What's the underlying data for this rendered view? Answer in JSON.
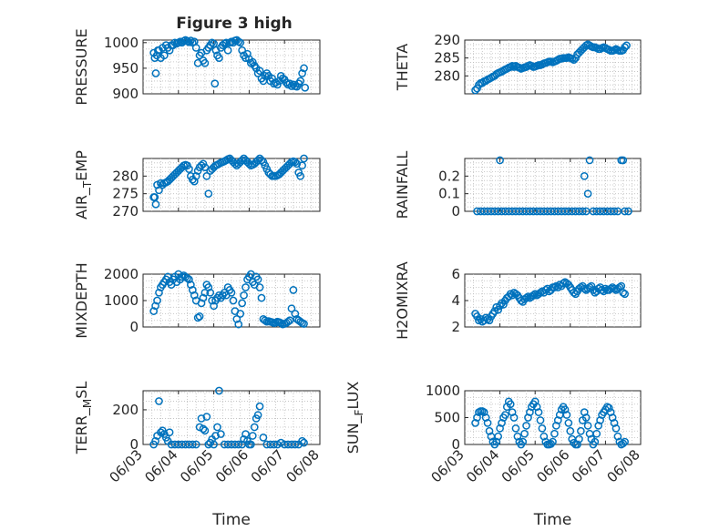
{
  "figure": {
    "title": "Figure 3 high"
  },
  "chart_data": [
    {
      "type": "scatter",
      "panel": "pressure",
      "ylabel": "PRESSURE",
      "xlabel": "",
      "xlim": [
        0,
        5
      ],
      "ylim": [
        900,
        1005
      ],
      "yticks": [
        900,
        950,
        1000
      ],
      "marker_color": "#0072BD",
      "x": [
        0.3,
        0.33,
        0.36,
        0.39,
        0.42,
        0.45,
        0.5,
        0.55,
        0.6,
        0.65,
        0.7,
        0.75,
        0.8,
        0.85,
        0.9,
        0.95,
        1.0,
        1.05,
        1.1,
        1.15,
        1.2,
        1.25,
        1.3,
        1.35,
        1.4,
        1.45,
        1.5,
        1.55,
        1.6,
        1.65,
        1.7,
        1.75,
        1.8,
        1.85,
        1.9,
        1.95,
        2.0,
        2.03,
        2.06,
        2.1,
        2.15,
        2.2,
        2.25,
        2.3,
        2.35,
        2.4,
        2.45,
        2.5,
        2.55,
        2.6,
        2.65,
        2.7,
        2.75,
        2.8,
        2.85,
        2.9,
        2.95,
        3.0,
        3.05,
        3.1,
        3.15,
        3.2,
        3.25,
        3.3,
        3.35,
        3.4,
        3.45,
        3.5,
        3.55,
        3.6,
        3.65,
        3.7,
        3.75,
        3.8,
        3.85,
        3.9,
        3.95,
        4.0,
        4.05,
        4.1,
        4.15,
        4.2,
        4.25,
        4.3,
        4.35,
        4.4,
        4.45,
        4.5,
        4.55,
        4.58
      ],
      "y": [
        980,
        970,
        940,
        975,
        985,
        985,
        970,
        990,
        975,
        995,
        990,
        985,
        995,
        995,
        1000,
        998,
        1000,
        1002,
        1000,
        1003,
        1005,
        1003,
        1001,
        1004,
        1000,
        1002,
        990,
        960,
        975,
        980,
        965,
        960,
        985,
        990,
        995,
        1000,
        998,
        920,
        985,
        975,
        970,
        990,
        995,
        998,
        1000,
        985,
        1000,
        1002,
        1000,
        1004,
        1005,
        1002,
        1000,
        985,
        975,
        970,
        978,
        968,
        960,
        962,
        955,
        950,
        940,
        945,
        930,
        925,
        935,
        940,
        935,
        925,
        930,
        920,
        922,
        918,
        925,
        935,
        930,
        928,
        922,
        918,
        920,
        915,
        918,
        915,
        914,
        920,
        925,
        940,
        950,
        912
      ]
    },
    {
      "type": "scatter",
      "panel": "theta",
      "ylabel": "THETA",
      "xlabel": "",
      "xlim": [
        0,
        5
      ],
      "ylim": [
        275,
        290
      ],
      "yticks": [
        280,
        285,
        290
      ],
      "marker_color": "#0072BD",
      "x": [
        0.3,
        0.35,
        0.4,
        0.45,
        0.5,
        0.55,
        0.6,
        0.65,
        0.7,
        0.75,
        0.8,
        0.85,
        0.9,
        0.95,
        1.0,
        1.05,
        1.1,
        1.15,
        1.2,
        1.25,
        1.3,
        1.35,
        1.4,
        1.45,
        1.5,
        1.55,
        1.6,
        1.65,
        1.7,
        1.75,
        1.8,
        1.85,
        1.9,
        1.95,
        2.0,
        2.05,
        2.1,
        2.15,
        2.2,
        2.25,
        2.3,
        2.35,
        2.4,
        2.45,
        2.5,
        2.55,
        2.6,
        2.65,
        2.7,
        2.75,
        2.8,
        2.85,
        2.9,
        2.95,
        3.0,
        3.05,
        3.1,
        3.15,
        3.2,
        3.25,
        3.3,
        3.35,
        3.4,
        3.45,
        3.5,
        3.55,
        3.6,
        3.65,
        3.7,
        3.75,
        3.8,
        3.85,
        3.9,
        3.95,
        4.0,
        4.05,
        4.1,
        4.15,
        4.2,
        4.25,
        4.3,
        4.35,
        4.4,
        4.45,
        4.5,
        4.55,
        4.6
      ],
      "y": [
        276,
        276.5,
        277.5,
        278,
        278,
        278.5,
        278.6,
        279,
        279.2,
        279.5,
        279.8,
        280,
        280.5,
        280.8,
        281,
        281.2,
        281.5,
        281.8,
        282,
        282.3,
        282.5,
        282.8,
        282.5,
        282.8,
        282.5,
        282.3,
        282,
        282.2,
        282.4,
        282.5,
        282.8,
        283,
        282.8,
        282.5,
        282.6,
        282.8,
        283,
        283,
        283.2,
        283.5,
        283.6,
        283.8,
        284,
        284,
        283.8,
        284,
        284.2,
        284.5,
        284.8,
        284.8,
        285,
        285,
        285,
        285.2,
        285,
        284.8,
        284.5,
        285,
        286,
        286.5,
        287,
        287.5,
        288,
        288.5,
        288.8,
        288.5,
        288.2,
        288,
        288,
        287.8,
        287.5,
        287.5,
        287.8,
        288,
        287.8,
        287.5,
        287.3,
        287,
        287,
        287.2,
        287.5,
        287.2,
        287,
        287,
        287.2,
        288,
        288.5
      ]
    },
    {
      "type": "scatter",
      "panel": "air-temp",
      "ylabel": "AIR_TEMP",
      "xlabel": "",
      "xlim": [
        0,
        5
      ],
      "ylim": [
        270,
        285
      ],
      "yticks": [
        270,
        275,
        280
      ],
      "marker_color": "#0072BD",
      "x": [
        0.3,
        0.33,
        0.36,
        0.4,
        0.45,
        0.5,
        0.55,
        0.6,
        0.65,
        0.7,
        0.75,
        0.8,
        0.85,
        0.9,
        0.95,
        1.0,
        1.05,
        1.1,
        1.15,
        1.2,
        1.25,
        1.3,
        1.35,
        1.4,
        1.45,
        1.5,
        1.55,
        1.6,
        1.65,
        1.7,
        1.75,
        1.8,
        1.85,
        1.9,
        1.95,
        2.0,
        2.05,
        2.1,
        2.15,
        2.2,
        2.25,
        2.3,
        2.35,
        2.4,
        2.45,
        2.5,
        2.55,
        2.6,
        2.65,
        2.7,
        2.75,
        2.8,
        2.85,
        2.9,
        2.95,
        3.0,
        3.05,
        3.1,
        3.15,
        3.2,
        3.25,
        3.3,
        3.35,
        3.4,
        3.45,
        3.5,
        3.55,
        3.6,
        3.65,
        3.7,
        3.75,
        3.8,
        3.85,
        3.9,
        3.95,
        4.0,
        4.05,
        4.1,
        4.15,
        4.2,
        4.25,
        4.3,
        4.35,
        4.4,
        4.45,
        4.5,
        4.55
      ],
      "y": [
        274,
        274,
        272,
        277.5,
        276,
        278,
        277.5,
        278,
        278.2,
        278.5,
        279,
        279.5,
        280,
        280.5,
        281,
        281.5,
        282,
        282.5,
        283,
        283.2,
        283,
        282,
        280,
        279,
        278.5,
        280,
        281.5,
        282.5,
        283,
        283.5,
        282.5,
        280,
        275,
        281.5,
        282,
        282.5,
        283,
        283.2,
        283.5,
        283.8,
        284,
        284.2,
        284.5,
        284.8,
        285,
        284.5,
        284,
        283.5,
        283,
        283.5,
        284,
        284.5,
        285,
        284.5,
        284,
        283.5,
        283,
        283.2,
        283.5,
        284,
        284.5,
        285,
        284.5,
        284,
        283,
        282,
        281,
        280.5,
        280,
        280,
        280,
        280.2,
        280.5,
        281,
        281.5,
        282,
        282.5,
        283,
        283.5,
        284,
        284.2,
        284,
        283.5,
        281,
        280,
        283,
        285
      ]
    },
    {
      "type": "scatter",
      "panel": "rainfall",
      "ylabel": "RAINFALL",
      "xlabel": "",
      "xlim": [
        0,
        5
      ],
      "ylim": [
        0,
        0.3
      ],
      "yticks": [
        0,
        0.1,
        0.2
      ],
      "marker_color": "#0072BD",
      "x": [
        0.35,
        0.45,
        0.55,
        0.65,
        0.75,
        0.85,
        0.95,
        1.0,
        1.05,
        1.15,
        1.25,
        1.35,
        1.45,
        1.55,
        1.65,
        1.75,
        1.85,
        1.95,
        2.05,
        2.15,
        2.25,
        2.35,
        2.45,
        2.55,
        2.65,
        2.75,
        2.85,
        2.95,
        3.05,
        3.15,
        3.25,
        3.35,
        3.4,
        3.45,
        3.5,
        3.55,
        3.65,
        3.75,
        3.85,
        3.95,
        4.05,
        4.15,
        4.25,
        4.35,
        4.45,
        4.5,
        4.55,
        4.65
      ],
      "y": [
        0,
        0,
        0,
        0,
        0,
        0,
        0,
        0.29,
        0,
        0,
        0,
        0,
        0,
        0,
        0,
        0,
        0,
        0,
        0,
        0,
        0,
        0,
        0,
        0,
        0,
        0,
        0,
        0,
        0,
        0,
        0,
        0,
        0.2,
        0,
        0.1,
        0.29,
        0,
        0,
        0,
        0,
        0,
        0,
        0,
        0,
        0.29,
        0.29,
        0,
        0
      ]
    },
    {
      "type": "scatter",
      "panel": "mixdepth",
      "ylabel": "MIXDEPTH",
      "xlabel": "",
      "xlim": [
        0,
        5
      ],
      "ylim": [
        0,
        2000
      ],
      "yticks": [
        0,
        1000,
        2000
      ],
      "marker_color": "#0072BD",
      "x": [
        0.3,
        0.35,
        0.4,
        0.45,
        0.5,
        0.55,
        0.6,
        0.65,
        0.7,
        0.75,
        0.8,
        0.85,
        0.9,
        0.95,
        1.0,
        1.05,
        1.1,
        1.15,
        1.2,
        1.25,
        1.3,
        1.35,
        1.4,
        1.45,
        1.5,
        1.55,
        1.6,
        1.65,
        1.7,
        1.75,
        1.8,
        1.85,
        1.9,
        1.95,
        2.0,
        2.05,
        2.1,
        2.15,
        2.2,
        2.25,
        2.3,
        2.35,
        2.4,
        2.45,
        2.5,
        2.55,
        2.6,
        2.65,
        2.7,
        2.75,
        2.8,
        2.85,
        2.9,
        2.95,
        3.0,
        3.05,
        3.1,
        3.15,
        3.2,
        3.25,
        3.3,
        3.35,
        3.4,
        3.45,
        3.5,
        3.55,
        3.6,
        3.65,
        3.7,
        3.75,
        3.8,
        3.85,
        3.9,
        3.95,
        4.0,
        4.05,
        4.1,
        4.15,
        4.2,
        4.25,
        4.3,
        4.35,
        4.4,
        4.45,
        4.5,
        4.55
      ],
      "y": [
        600,
        800,
        1000,
        1300,
        1500,
        1600,
        1700,
        1800,
        1900,
        1700,
        1600,
        1800,
        1900,
        1700,
        2000,
        1800,
        1900,
        1950,
        1900,
        1850,
        1800,
        1600,
        1400,
        1200,
        1000,
        350,
        400,
        900,
        1100,
        1300,
        1600,
        1500,
        1300,
        1000,
        800,
        1000,
        1100,
        1200,
        1100,
        1200,
        1300,
        1200,
        1500,
        1400,
        1300,
        1000,
        600,
        300,
        100,
        500,
        900,
        1200,
        1500,
        1800,
        1900,
        2000,
        1700,
        1600,
        1900,
        1800,
        1500,
        1100,
        300,
        250,
        200,
        220,
        200,
        180,
        150,
        160,
        200,
        180,
        150,
        100,
        120,
        150,
        200,
        250,
        700,
        1400,
        500,
        300,
        250,
        200,
        150,
        120
      ]
    },
    {
      "type": "scatter",
      "panel": "h2omixra",
      "ylabel": "H2OMIXRA",
      "xlabel": "",
      "xlim": [
        0,
        5
      ],
      "ylim": [
        2,
        6
      ],
      "yticks": [
        2,
        4,
        6
      ],
      "marker_color": "#0072BD",
      "x": [
        0.3,
        0.35,
        0.4,
        0.45,
        0.5,
        0.55,
        0.6,
        0.65,
        0.7,
        0.75,
        0.8,
        0.85,
        0.9,
        0.95,
        1.0,
        1.05,
        1.1,
        1.15,
        1.2,
        1.25,
        1.3,
        1.35,
        1.4,
        1.45,
        1.5,
        1.55,
        1.6,
        1.65,
        1.7,
        1.75,
        1.8,
        1.85,
        1.9,
        1.95,
        2.0,
        2.05,
        2.1,
        2.15,
        2.2,
        2.25,
        2.3,
        2.35,
        2.4,
        2.45,
        2.5,
        2.55,
        2.6,
        2.65,
        2.7,
        2.75,
        2.8,
        2.85,
        2.9,
        2.95,
        3.0,
        3.05,
        3.1,
        3.15,
        3.2,
        3.25,
        3.3,
        3.35,
        3.4,
        3.45,
        3.5,
        3.55,
        3.6,
        3.65,
        3.7,
        3.75,
        3.8,
        3.85,
        3.9,
        3.95,
        4.0,
        4.05,
        4.1,
        4.15,
        4.2,
        4.25,
        4.3,
        4.35,
        4.4,
        4.45,
        4.5,
        4.55
      ],
      "y": [
        3,
        2.8,
        2.5,
        2.6,
        2.4,
        2.5,
        2.7,
        2.6,
        2.5,
        2.8,
        3,
        3.2,
        3.5,
        3.3,
        3.6,
        3.8,
        3.7,
        4,
        4.2,
        4.3,
        4.5,
        4.4,
        4.6,
        4.5,
        4.4,
        4.2,
        4,
        3.9,
        4.1,
        4.2,
        4.3,
        4.2,
        4.3,
        4.4,
        4.5,
        4.4,
        4.5,
        4.6,
        4.7,
        4.6,
        4.8,
        4.9,
        4.7,
        4.8,
        5,
        5,
        5.1,
        5,
        5.2,
        5.1,
        5.3,
        5.4,
        5.3,
        5.2,
        5,
        4.8,
        4.6,
        4.5,
        4.7,
        4.9,
        5,
        5.1,
        4.9,
        4.8,
        4.9,
        5,
        5.1,
        4.8,
        4.6,
        4.7,
        4.9,
        5,
        4.8,
        4.7,
        4.9,
        4.8,
        4.8,
        4.9,
        5,
        4.9,
        4.8,
        4.9,
        5,
        5.1,
        4.6,
        4.5
      ]
    },
    {
      "type": "scatter",
      "panel": "terr-msl",
      "ylabel": "TERR_MSL",
      "xlabel": "Time",
      "xlim": [
        0,
        5
      ],
      "ylim": [
        0,
        310
      ],
      "yticks": [
        0,
        200
      ],
      "xtick_labels": [
        "06/03",
        "06/04",
        "06/05",
        "06/06",
        "06/07",
        "06/08"
      ],
      "marker_color": "#0072BD",
      "x": [
        0.3,
        0.35,
        0.4,
        0.45,
        0.5,
        0.55,
        0.6,
        0.65,
        0.7,
        0.75,
        0.8,
        0.9,
        1.0,
        1.1,
        1.2,
        1.3,
        1.4,
        1.5,
        1.6,
        1.65,
        1.7,
        1.75,
        1.8,
        1.85,
        1.9,
        1.95,
        2.0,
        2.05,
        2.1,
        2.15,
        2.2,
        2.3,
        2.4,
        2.5,
        2.6,
        2.7,
        2.8,
        2.85,
        2.9,
        2.95,
        3.0,
        3.05,
        3.1,
        3.15,
        3.2,
        3.25,
        3.3,
        3.4,
        3.5,
        3.6,
        3.7,
        3.8,
        3.9,
        4.0,
        4.1,
        4.2,
        4.3,
        4.4,
        4.5,
        4.55
      ],
      "y": [
        0,
        20,
        50,
        250,
        70,
        80,
        60,
        40,
        20,
        70,
        0,
        0,
        0,
        0,
        0,
        0,
        0,
        0,
        100,
        150,
        90,
        80,
        160,
        0,
        10,
        30,
        0,
        50,
        100,
        310,
        60,
        0,
        0,
        0,
        0,
        0,
        0,
        30,
        60,
        20,
        0,
        0,
        50,
        100,
        150,
        170,
        220,
        40,
        0,
        0,
        0,
        0,
        10,
        0,
        0,
        0,
        0,
        0,
        20,
        10
      ]
    },
    {
      "type": "scatter",
      "panel": "sun-flux",
      "ylabel": "SUN_FLUX",
      "xlabel": "Time",
      "xlim": [
        0,
        5
      ],
      "ylim": [
        0,
        1000
      ],
      "yticks": [
        0,
        500,
        1000
      ],
      "xtick_labels": [
        "06/03",
        "06/04",
        "06/05",
        "06/06",
        "06/07",
        "06/08"
      ],
      "marker_color": "#0072BD",
      "x": [
        0.3,
        0.35,
        0.4,
        0.45,
        0.5,
        0.55,
        0.6,
        0.65,
        0.7,
        0.75,
        0.8,
        0.85,
        0.9,
        0.95,
        1.0,
        1.05,
        1.1,
        1.15,
        1.2,
        1.25,
        1.3,
        1.35,
        1.4,
        1.45,
        1.5,
        1.55,
        1.6,
        1.65,
        1.7,
        1.75,
        1.8,
        1.85,
        1.9,
        1.95,
        2.0,
        2.05,
        2.1,
        2.15,
        2.2,
        2.25,
        2.3,
        2.35,
        2.4,
        2.45,
        2.5,
        2.55,
        2.6,
        2.65,
        2.7,
        2.75,
        2.8,
        2.85,
        2.9,
        2.95,
        3.0,
        3.05,
        3.1,
        3.15,
        3.2,
        3.25,
        3.3,
        3.35,
        3.4,
        3.45,
        3.5,
        3.55,
        3.6,
        3.65,
        3.7,
        3.75,
        3.8,
        3.85,
        3.9,
        3.95,
        4.0,
        4.05,
        4.1,
        4.15,
        4.2,
        4.25,
        4.3,
        4.35,
        4.4,
        4.45,
        4.5,
        4.55
      ],
      "y": [
        400,
        500,
        600,
        620,
        620,
        600,
        500,
        400,
        250,
        150,
        50,
        0,
        50,
        150,
        300,
        400,
        500,
        550,
        700,
        800,
        750,
        600,
        500,
        300,
        150,
        50,
        0,
        50,
        200,
        350,
        500,
        600,
        700,
        750,
        800,
        700,
        600,
        450,
        300,
        150,
        50,
        0,
        0,
        10,
        50,
        200,
        350,
        450,
        550,
        650,
        700,
        650,
        550,
        400,
        250,
        100,
        30,
        0,
        0,
        100,
        250,
        450,
        600,
        500,
        350,
        200,
        100,
        0,
        50,
        200,
        350,
        450,
        550,
        600,
        650,
        700,
        680,
        600,
        500,
        400,
        300,
        150,
        50,
        0,
        20,
        50
      ]
    }
  ]
}
